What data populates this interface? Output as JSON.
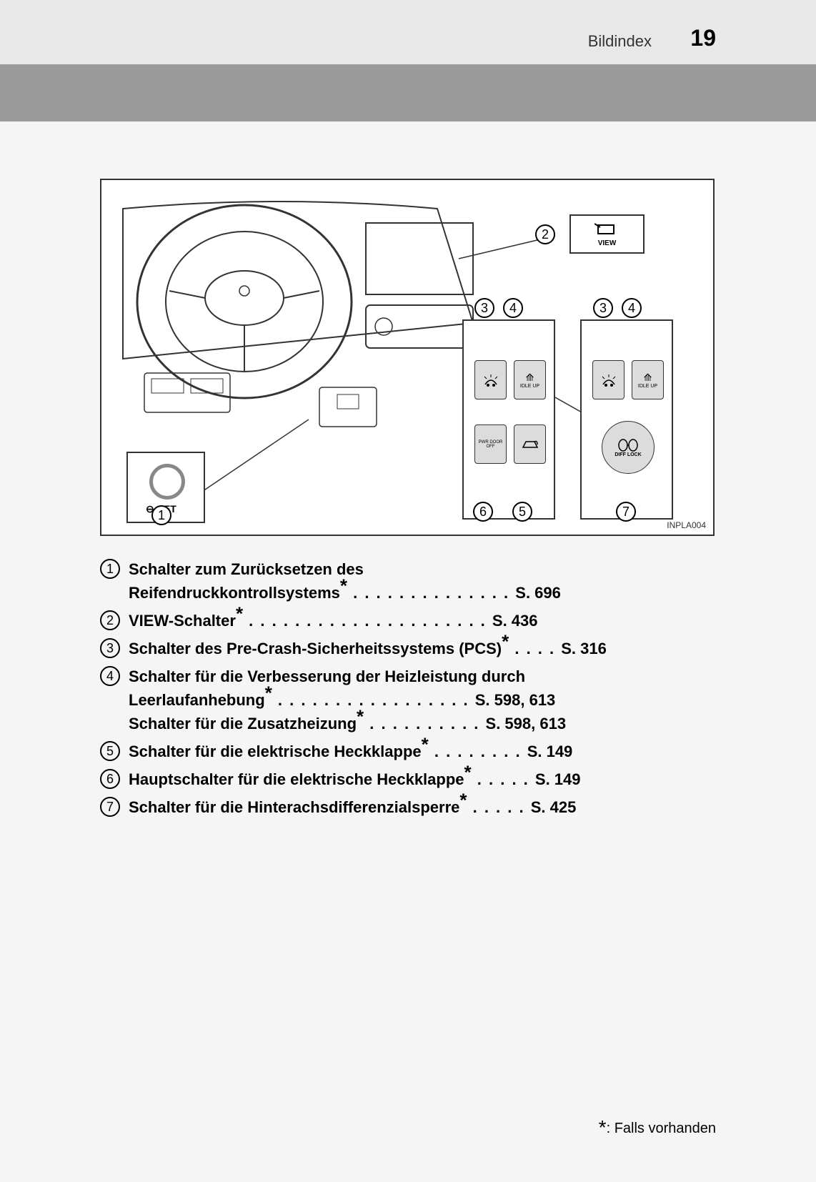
{
  "header": {
    "section": "Bildindex",
    "page": "19"
  },
  "diagram": {
    "code": "INPLA004",
    "callouts": [
      "1",
      "2",
      "3",
      "4",
      "5",
      "6",
      "7"
    ],
    "buttons": {
      "view": "VIEW",
      "set": "SET",
      "idle": "IDLE UP",
      "pwr": "PWR DOOR OFF",
      "diff": "DIFF LOCK"
    }
  },
  "items": [
    {
      "num": "1",
      "lines": [
        {
          "text": "Schalter zum Zurücksetzen des",
          "page": ""
        },
        {
          "text": "Reifendruckkontrollsystems",
          "star": true,
          "page": "S. 696"
        }
      ]
    },
    {
      "num": "2",
      "lines": [
        {
          "text": "VIEW-Schalter",
          "star": true,
          "page": "S. 436"
        }
      ]
    },
    {
      "num": "3",
      "lines": [
        {
          "text": "Schalter des Pre-Crash-Sicherheitssystems (PCS)",
          "star": true,
          "page": "S. 316"
        }
      ]
    },
    {
      "num": "4",
      "lines": [
        {
          "text": "Schalter für die Verbesserung der Heizleistung durch",
          "page": ""
        },
        {
          "text": "Leerlaufanhebung",
          "star": true,
          "page": "S. 598, 613"
        },
        {
          "text": "Schalter für die Zusatzheizung",
          "star": true,
          "page": "S. 598, 613"
        }
      ]
    },
    {
      "num": "5",
      "lines": [
        {
          "text": "Schalter für die elektrische Heckklappe",
          "star": true,
          "page": "S. 149"
        }
      ]
    },
    {
      "num": "6",
      "lines": [
        {
          "text": "Hauptschalter für die elektrische Heckklappe",
          "star": true,
          "page": "S. 149"
        }
      ]
    },
    {
      "num": "7",
      "lines": [
        {
          "text": "Schalter für die Hinterachsdifferenzialsperre",
          "star": true,
          "page": "S. 425"
        }
      ]
    }
  ],
  "footnote": {
    "symbol": "*",
    "text": ": Falls vorhanden"
  }
}
